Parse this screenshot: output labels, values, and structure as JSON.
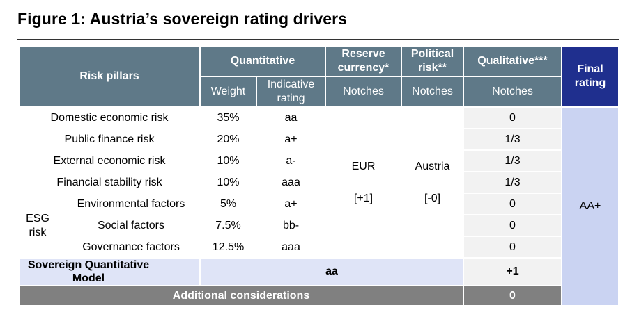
{
  "title": "Figure 1: Austria’s sovereign rating drivers",
  "header": {
    "risk_pillars": "Risk pillars",
    "quantitative": "Quantitative",
    "reserve_currency": "Reserve currency*",
    "political_risk": "Political risk**",
    "qualitative": "Qualitative***",
    "final_rating": "Final rating",
    "weight": "Weight",
    "indicative_rating": "Indicative rating",
    "notches_reserve": "Notches",
    "notches_political": "Notches",
    "notches_qualitative": "Notches"
  },
  "rows": [
    {
      "pillar": "Domestic economic risk",
      "weight": "35%",
      "rating": "aa",
      "qualitative": "0"
    },
    {
      "pillar": "Public finance risk",
      "weight": "20%",
      "rating": "a+",
      "qualitative": "1/3"
    },
    {
      "pillar": "External economic risk",
      "weight": "10%",
      "rating": "a-",
      "qualitative": "1/3"
    },
    {
      "pillar": "Financial stability risk",
      "weight": "10%",
      "rating": "aaa",
      "qualitative": "1/3"
    }
  ],
  "esg": {
    "label": "ESG risk",
    "rows": [
      {
        "factor": "Environmental factors",
        "weight": "5%",
        "rating": "a+",
        "qualitative": "0"
      },
      {
        "factor": "Social factors",
        "weight": "7.5%",
        "rating": "bb-",
        "qualitative": "0"
      },
      {
        "factor": "Governance factors",
        "weight": "12.5%",
        "rating": "aaa",
        "qualitative": "0"
      }
    ]
  },
  "reserve_currency": {
    "name": "EUR",
    "notches": "[+1]"
  },
  "political": {
    "name": "Austria",
    "notches": "[-0]"
  },
  "final_rating": "AA+",
  "sqm": {
    "label": "Sovereign Quantitative Model",
    "value": "aa",
    "notches": "+1"
  },
  "additional": {
    "label": "Additional considerations",
    "value": "0"
  }
}
